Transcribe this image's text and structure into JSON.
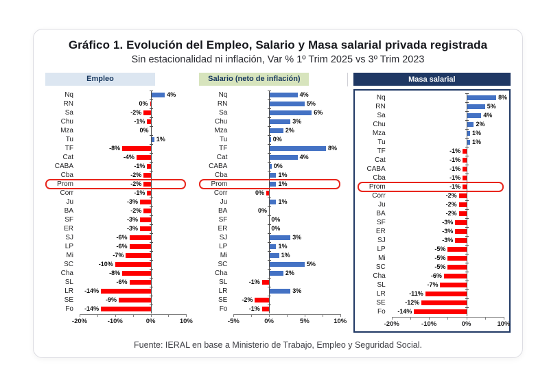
{
  "page": {
    "title": "Gráfico 1. Evolución del Empleo, Salario y Masa salarial privada registrada",
    "subtitle": "Sin estacionalidad ni inflación, Var % 1º Trim 2025 vs 3º Trim 2023",
    "source": "Fuente: IERAL en base a Ministerio de Trabajo, Empleo y Seguridad Social."
  },
  "colors": {
    "positive_bar": "#4472c4",
    "negative_bar": "#fe0000",
    "highlight_box": "#e8251c",
    "panel1_header_bg": "#dce6f1",
    "panel2_header_bg": "#d7e4bd",
    "panel3_header_bg": "#1f3864",
    "panel3_border": "#1f3864"
  },
  "chart_data": [
    {
      "type": "bar",
      "orientation": "horizontal",
      "title": "Empleo",
      "categories": [
        "Nq",
        "RN",
        "Sa",
        "Chu",
        "Mza",
        "Tu",
        "TF",
        "Cat",
        "CABA",
        "Cba",
        "Prom",
        "Corr",
        "Ju",
        "BA",
        "SF",
        "ER",
        "SJ",
        "LP",
        "Mi",
        "SC",
        "Cha",
        "SL",
        "LR",
        "SE",
        "Fo"
      ],
      "values": [
        4,
        -0.2,
        -2,
        -1,
        -0.02,
        1,
        -8,
        -4,
        -1,
        -2,
        -2,
        -1,
        -3,
        -2,
        -3,
        -3,
        -6,
        -6,
        -7,
        -10,
        -8,
        -6,
        -14,
        -9,
        -14
      ],
      "labels": [
        "4%",
        "0%",
        "-2%",
        "-1%",
        "0%",
        "1%",
        "-8%",
        "-4%",
        "-1%",
        "-2%",
        "-2%",
        "-1%",
        "-3%",
        "-2%",
        "-3%",
        "-3%",
        "-6%",
        "-6%",
        "-7%",
        "-10%",
        "-8%",
        "-6%",
        "-14%",
        "-9%",
        "-14%"
      ],
      "xlim": [
        -20,
        10
      ],
      "xtick_values": [
        -20,
        -10,
        0,
        10
      ],
      "xticks": [
        "-20%",
        "-10%",
        "0%",
        "10%"
      ],
      "highlight_category": "Prom",
      "legend": "none",
      "grid": "off"
    },
    {
      "type": "bar",
      "orientation": "horizontal",
      "title": "Salario (neto de inflación)",
      "categories": [
        "Nq",
        "RN",
        "Sa",
        "Chu",
        "Mza",
        "Tu",
        "TF",
        "Cat",
        "CABA",
        "Cba",
        "Prom",
        "Corr",
        "Ju",
        "BA",
        "SF",
        "ER",
        "SJ",
        "LP",
        "Mi",
        "SC",
        "Cha",
        "SL",
        "LR",
        "SE",
        "Fo"
      ],
      "values": [
        4,
        5,
        6,
        3,
        2,
        0.25,
        8,
        4,
        0.35,
        1,
        1,
        -0.4,
        1,
        -0.02,
        0.02,
        0.02,
        3,
        1,
        1.4,
        5,
        2,
        -1,
        3,
        -2,
        -1
      ],
      "labels": [
        "4%",
        "5%",
        "6%",
        "3%",
        "2%",
        "0%",
        "8%",
        "4%",
        "0%",
        "1%",
        "1%",
        "0%",
        "1%",
        "0%",
        "0%",
        "0%",
        "3%",
        "1%",
        "1%",
        "5%",
        "2%",
        "-1%",
        "3%",
        "-2%",
        "-1%"
      ],
      "xlim": [
        -5,
        10
      ],
      "xtick_values": [
        -5,
        0,
        5,
        10
      ],
      "xticks": [
        "-5%",
        "0%",
        "5%",
        "10%"
      ],
      "highlight_category": "Prom",
      "legend": "none",
      "grid": "off"
    },
    {
      "type": "bar",
      "orientation": "horizontal",
      "title": "Masa salarial",
      "categories": [
        "Nq",
        "RN",
        "Sa",
        "Chu",
        "Mza",
        "Tu",
        "TF",
        "Cat",
        "CABA",
        "Cba",
        "Prom",
        "Corr",
        "Ju",
        "BA",
        "SF",
        "ER",
        "SJ",
        "LP",
        "Mi",
        "SC",
        "Cha",
        "SL",
        "LR",
        "SE",
        "Fo"
      ],
      "values": [
        8,
        5,
        4,
        2,
        1,
        1,
        -1,
        -1,
        -1,
        -1,
        -1,
        -2,
        -2,
        -2,
        -3,
        -3,
        -3,
        -5,
        -5,
        -5,
        -6,
        -7,
        -11,
        -12,
        -14
      ],
      "labels": [
        "8%",
        "5%",
        "4%",
        "2%",
        "1%",
        "1%",
        "-1%",
        "-1%",
        "-1%",
        "-1%",
        "-1%",
        "-2%",
        "-2%",
        "-2%",
        "-3%",
        "-3%",
        "-3%",
        "-5%",
        "-5%",
        "-5%",
        "-6%",
        "-7%",
        "-11%",
        "-12%",
        "-14%"
      ],
      "xlim": [
        -20,
        10
      ],
      "xtick_values": [
        -20,
        -10,
        0,
        10
      ],
      "xticks": [
        "-20%",
        "-10%",
        "0%",
        "10%"
      ],
      "highlight_category": "Prom",
      "legend": "none",
      "grid": "off"
    }
  ]
}
